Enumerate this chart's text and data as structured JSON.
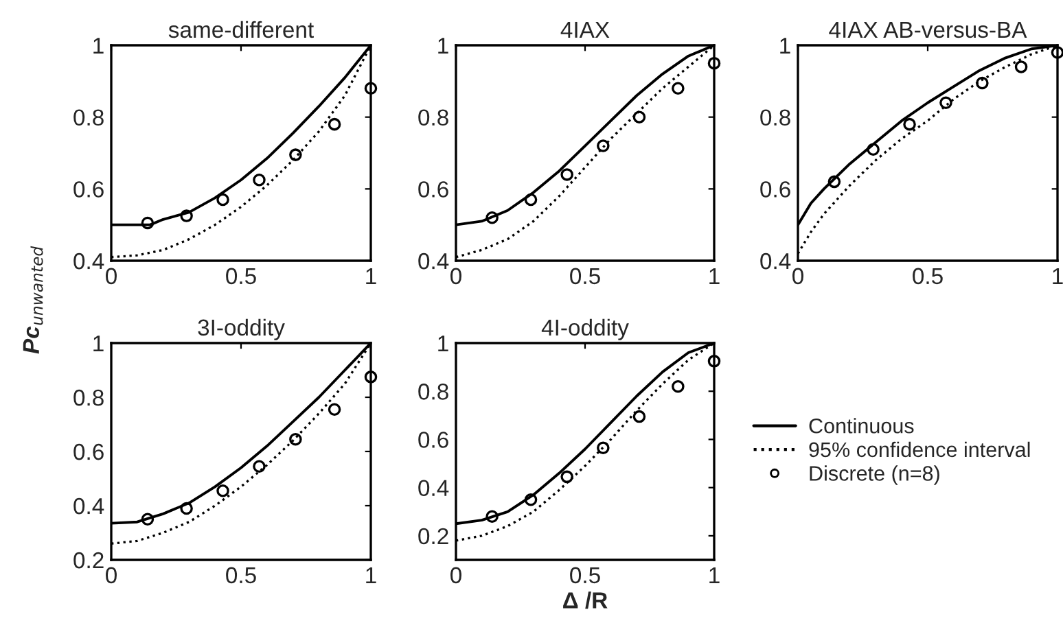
{
  "chart_data": [
    {
      "type": "line",
      "title": "same-different",
      "xlim": [
        0,
        1
      ],
      "ylim": [
        0.4,
        1
      ],
      "xticks": [
        0,
        0.5,
        1
      ],
      "yticks": [
        0.4,
        0.6,
        0.8,
        1
      ],
      "grid": false,
      "legend": false,
      "series": [
        {
          "color": "#000000",
          "line_style": "solid",
          "marker": "none",
          "x": [
            0,
            0.1,
            0.15,
            0.2,
            0.3,
            0.4,
            0.5,
            0.6,
            0.7,
            0.8,
            0.9,
            1
          ],
          "values": [
            0.5,
            0.5,
            0.5,
            0.515,
            0.535,
            0.575,
            0.625,
            0.685,
            0.755,
            0.83,
            0.91,
            1
          ]
        },
        {
          "color": "#000000",
          "line_style": "dotted",
          "marker": "none",
          "x": [
            0,
            0.1,
            0.2,
            0.3,
            0.4,
            0.5,
            0.6,
            0.7,
            0.8,
            0.9,
            1
          ],
          "values": [
            0.41,
            0.415,
            0.43,
            0.46,
            0.5,
            0.55,
            0.61,
            0.68,
            0.76,
            0.86,
            1
          ]
        },
        {
          "type": "scatter",
          "color": "#000000",
          "marker": "circle",
          "x": [
            0.14,
            0.29,
            0.43,
            0.57,
            0.71,
            0.86,
            1
          ],
          "values": [
            0.505,
            0.525,
            0.57,
            0.625,
            0.695,
            0.78,
            0.88
          ]
        }
      ]
    },
    {
      "type": "line",
      "title": "4IAX",
      "xlim": [
        0,
        1
      ],
      "ylim": [
        0.4,
        1
      ],
      "xticks": [
        0,
        0.5,
        1
      ],
      "yticks": [
        0.4,
        0.6,
        0.8,
        1
      ],
      "grid": false,
      "legend": false,
      "series": [
        {
          "color": "#000000",
          "line_style": "solid",
          "marker": "none",
          "x": [
            0,
            0.1,
            0.2,
            0.3,
            0.4,
            0.5,
            0.6,
            0.7,
            0.8,
            0.9,
            1
          ],
          "values": [
            0.5,
            0.51,
            0.54,
            0.59,
            0.65,
            0.72,
            0.79,
            0.86,
            0.92,
            0.97,
            1
          ]
        },
        {
          "color": "#000000",
          "line_style": "dotted",
          "marker": "none",
          "x": [
            0,
            0.1,
            0.2,
            0.3,
            0.4,
            0.5,
            0.6,
            0.7,
            0.8,
            0.9,
            1
          ],
          "values": [
            0.41,
            0.43,
            0.46,
            0.51,
            0.58,
            0.66,
            0.74,
            0.81,
            0.88,
            0.94,
            1
          ]
        },
        {
          "type": "scatter",
          "color": "#000000",
          "marker": "circle",
          "x": [
            0.14,
            0.29,
            0.43,
            0.57,
            0.71,
            0.86,
            1
          ],
          "values": [
            0.52,
            0.57,
            0.64,
            0.72,
            0.8,
            0.88,
            0.95
          ]
        }
      ]
    },
    {
      "type": "line",
      "title": "4IAX AB-versus-BA",
      "xlim": [
        0,
        1
      ],
      "ylim": [
        0.4,
        1
      ],
      "xticks": [
        0,
        0.5,
        1
      ],
      "yticks": [
        0.4,
        0.6,
        0.8,
        1
      ],
      "grid": false,
      "legend": false,
      "series": [
        {
          "color": "#000000",
          "line_style": "solid",
          "marker": "none",
          "x": [
            0,
            0.05,
            0.1,
            0.2,
            0.3,
            0.4,
            0.5,
            0.6,
            0.7,
            0.8,
            0.9,
            1
          ],
          "values": [
            0.5,
            0.56,
            0.6,
            0.67,
            0.73,
            0.79,
            0.84,
            0.885,
            0.93,
            0.965,
            0.99,
            1
          ]
        },
        {
          "color": "#000000",
          "line_style": "dotted",
          "marker": "none",
          "x": [
            0,
            0.05,
            0.1,
            0.2,
            0.3,
            0.4,
            0.5,
            0.6,
            0.7,
            0.8,
            0.9,
            1
          ],
          "values": [
            0.42,
            0.48,
            0.53,
            0.61,
            0.68,
            0.74,
            0.79,
            0.85,
            0.9,
            0.94,
            0.975,
            1
          ]
        },
        {
          "type": "scatter",
          "color": "#000000",
          "marker": "circle",
          "x": [
            0.14,
            0.29,
            0.43,
            0.57,
            0.71,
            0.86,
            1
          ],
          "values": [
            0.62,
            0.71,
            0.78,
            0.84,
            0.895,
            0.94,
            0.98
          ]
        }
      ]
    },
    {
      "type": "line",
      "title": "3I-oddity",
      "ylabel": "Pc$_{unwanted}$",
      "xlim": [
        0,
        1
      ],
      "ylim": [
        0.2,
        1
      ],
      "xticks": [
        0,
        0.5,
        1
      ],
      "yticks": [
        0.2,
        0.4,
        0.6,
        0.8,
        1
      ],
      "grid": false,
      "legend": false,
      "series": [
        {
          "color": "#000000",
          "line_style": "solid",
          "marker": "none",
          "x": [
            0,
            0.1,
            0.2,
            0.3,
            0.4,
            0.5,
            0.6,
            0.7,
            0.8,
            0.9,
            1
          ],
          "values": [
            0.335,
            0.34,
            0.37,
            0.41,
            0.47,
            0.54,
            0.62,
            0.71,
            0.8,
            0.9,
            1
          ]
        },
        {
          "color": "#000000",
          "line_style": "dotted",
          "marker": "none",
          "x": [
            0,
            0.1,
            0.2,
            0.3,
            0.4,
            0.5,
            0.6,
            0.7,
            0.8,
            0.9,
            1
          ],
          "values": [
            0.26,
            0.27,
            0.3,
            0.34,
            0.4,
            0.47,
            0.55,
            0.64,
            0.74,
            0.85,
            1
          ]
        },
        {
          "type": "scatter",
          "color": "#000000",
          "marker": "circle",
          "x": [
            0.14,
            0.29,
            0.43,
            0.57,
            0.71,
            0.86,
            1
          ],
          "values": [
            0.35,
            0.39,
            0.455,
            0.545,
            0.645,
            0.755,
            0.875
          ]
        }
      ]
    },
    {
      "type": "line",
      "title": "4I-oddity",
      "xlabel": "Δ /R",
      "xlim": [
        0,
        1
      ],
      "ylim": [
        0.1,
        1
      ],
      "xticks": [
        0,
        0.5,
        1
      ],
      "yticks": [
        0.2,
        0.4,
        0.6,
        0.8,
        1
      ],
      "grid": false,
      "legend": "right",
      "series": [
        {
          "name": "Continuous",
          "color": "#000000",
          "line_style": "solid",
          "marker": "none",
          "x": [
            0,
            0.1,
            0.2,
            0.3,
            0.4,
            0.5,
            0.6,
            0.7,
            0.8,
            0.9,
            1
          ],
          "values": [
            0.25,
            0.265,
            0.3,
            0.37,
            0.46,
            0.56,
            0.67,
            0.78,
            0.88,
            0.96,
            1
          ]
        },
        {
          "name": "95% confidence interval",
          "color": "#000000",
          "line_style": "dotted",
          "marker": "none",
          "x": [
            0,
            0.1,
            0.2,
            0.3,
            0.4,
            0.5,
            0.6,
            0.7,
            0.8,
            0.9,
            1
          ],
          "values": [
            0.18,
            0.2,
            0.24,
            0.3,
            0.39,
            0.49,
            0.6,
            0.72,
            0.83,
            0.93,
            1
          ]
        },
        {
          "type": "scatter",
          "name": "Discrete (n=8)",
          "color": "#000000",
          "marker": "circle",
          "x": [
            0.14,
            0.29,
            0.43,
            0.57,
            0.71,
            0.86,
            1
          ],
          "values": [
            0.28,
            0.35,
            0.445,
            0.565,
            0.695,
            0.82,
            0.925
          ]
        }
      ]
    }
  ]
}
